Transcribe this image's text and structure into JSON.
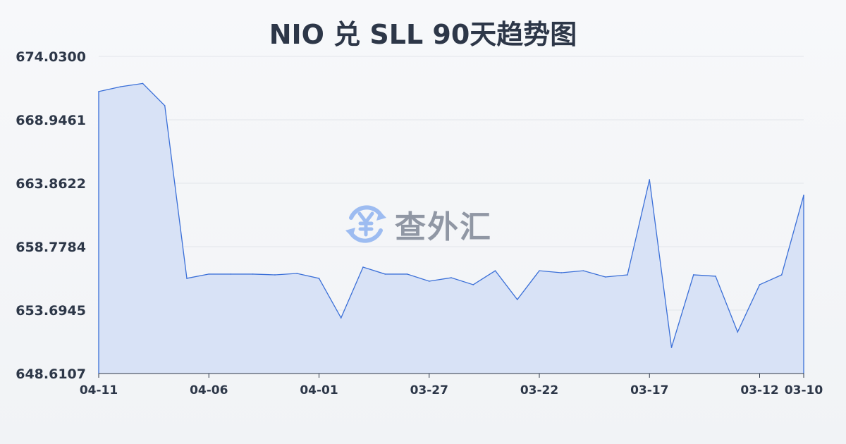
{
  "chart_data": {
    "type": "area",
    "title": "NIO 兑 SLL 90天趋势图",
    "xlabel": "",
    "ylabel": "",
    "ylim": [
      648.6107,
      674.03
    ],
    "yticks": [
      "674.0300",
      "668.9461",
      "663.8622",
      "658.7784",
      "653.6945",
      "648.6107"
    ],
    "xticks": [
      "04-11",
      "04-06",
      "04-01",
      "03-27",
      "03-22",
      "03-17",
      "03-12",
      "03-10"
    ],
    "grid": true,
    "x": [
      "04-11",
      "04-10",
      "04-09",
      "04-08",
      "04-07",
      "04-06",
      "04-05",
      "04-04",
      "04-03",
      "04-02",
      "04-01",
      "03-31",
      "03-30",
      "03-29",
      "03-28",
      "03-27",
      "03-26",
      "03-25",
      "03-24",
      "03-23",
      "03-22",
      "03-21",
      "03-20",
      "03-19",
      "03-18",
      "03-17",
      "03-16",
      "03-15",
      "03-14",
      "03-13",
      "03-12",
      "03-11",
      "03-10"
    ],
    "values": [
      671.21,
      671.6,
      671.86,
      670.08,
      656.24,
      656.58,
      656.58,
      656.58,
      656.52,
      656.63,
      656.24,
      653.07,
      657.14,
      656.58,
      656.58,
      656.01,
      656.29,
      655.73,
      656.85,
      654.54,
      656.85,
      656.69,
      656.85,
      656.35,
      656.52,
      664.15,
      650.7,
      656.52,
      656.41,
      651.94,
      655.73,
      656.52,
      662.9
    ],
    "colors": {
      "line": "#3a6fd8",
      "fill": "#d6e0f5",
      "grid": "#e2e5ea",
      "text": "#2d3748"
    }
  },
  "watermark": {
    "text": "查外汇",
    "icon": "yen-exchange-icon"
  }
}
